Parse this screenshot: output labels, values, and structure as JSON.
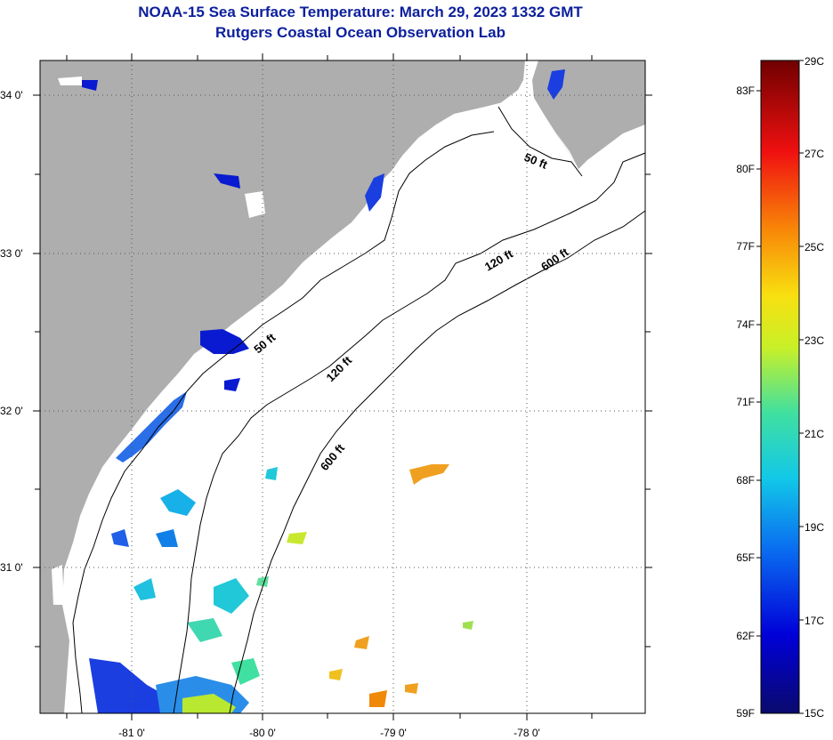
{
  "title": {
    "line1": "NOAA-15 Sea Surface Temperature:  March 29, 2023 1332 GMT",
    "line2": "Rutgers Coastal Ocean Observation Lab"
  },
  "map": {
    "x_labels": [
      "-81 0'",
      "-80 0'",
      "-79 0'",
      "-78 0'"
    ],
    "y_labels": [
      "34 0'",
      "33 0'",
      "32 0'",
      "31 0'"
    ],
    "contours": [
      {
        "label": "50 ft"
      },
      {
        "label": "50 ft"
      },
      {
        "label": "120 ft"
      },
      {
        "label": "120 ft"
      },
      {
        "label": "600 ft"
      },
      {
        "label": "600 ft"
      }
    ]
  },
  "colorbar": {
    "fahrenheit_labels": [
      "83F",
      "80F",
      "77F",
      "74F",
      "71F",
      "68F",
      "65F",
      "62F",
      "59F"
    ],
    "celsius_labels": [
      "29C",
      "27C",
      "25C",
      "23C",
      "21C",
      "19C",
      "17C",
      "15C"
    ],
    "colors": [
      "#0a0a6e",
      "#0000d8",
      "#0a6cf0",
      "#12c8e8",
      "#40e0a0",
      "#c8f028",
      "#f8e010",
      "#f88808",
      "#f01010",
      "#700000"
    ]
  }
}
